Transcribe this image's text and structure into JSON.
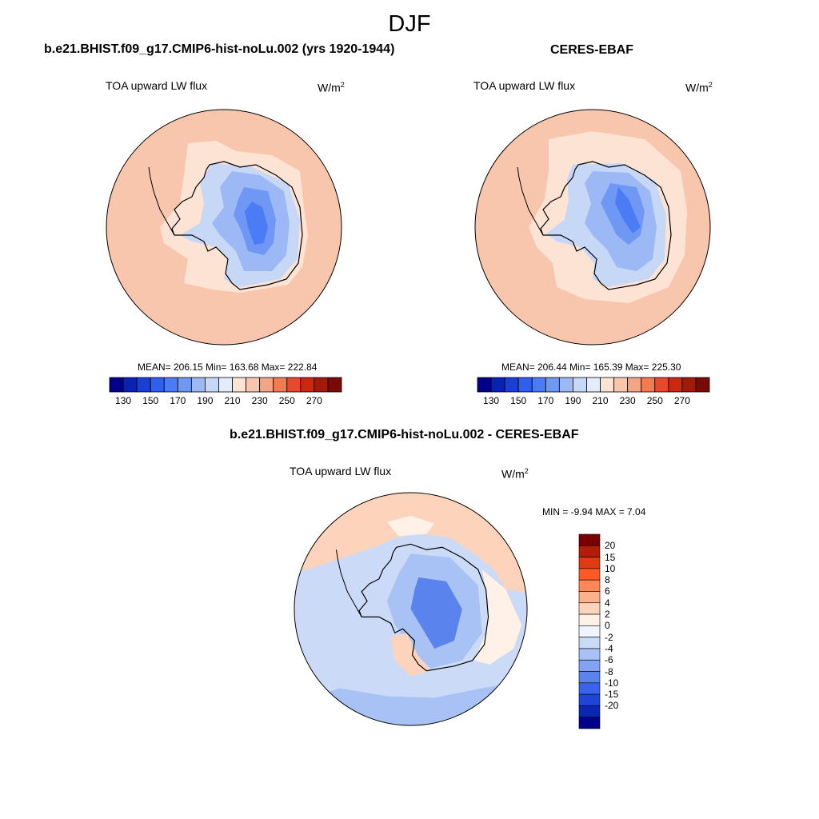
{
  "figure": {
    "season": "DJF"
  },
  "panels": {
    "model": {
      "title": "b.e21.BHIST.f09_g17.CMIP6-hist-noLu.002 (yrs 1920-1944)",
      "variable": "TOA upward LW flux",
      "units_base": "W/m",
      "units_exp": "2",
      "stats": "MEAN= 206.15  Min= 163.68  Max= 222.84"
    },
    "obs": {
      "title": "CERES-EBAF",
      "variable": "TOA upward LW flux",
      "units_base": "W/m",
      "units_exp": "2",
      "stats": "MEAN= 206.44  Min= 165.39  Max= 225.30"
    },
    "diff": {
      "title": "b.e21.BHIST.f09_g17.CMIP6-hist-noLu.002 - CERES-EBAF",
      "variable": "TOA upward LW flux",
      "units_base": "W/m",
      "units_exp": "2",
      "stats": "MIN =  -9.94 MAX =   7.04"
    }
  },
  "colorbar_abs": {
    "colors": [
      "#00008b",
      "#0a22b4",
      "#1a3fd6",
      "#2f5ff0",
      "#4b7bf5",
      "#6f98f5",
      "#9cb8f5",
      "#c7d8f7",
      "#e3ecfa",
      "#fde3d4",
      "#f8c6ad",
      "#f4a583",
      "#f27b52",
      "#e8492a",
      "#cc2810",
      "#a01b0a",
      "#7a0a05"
    ],
    "tick_labels": [
      "130",
      "150",
      "170",
      "190",
      "210",
      "230",
      "250",
      "270"
    ]
  },
  "colorbar_diff": {
    "colors": [
      "#7a0000",
      "#b01d08",
      "#e03a12",
      "#ff5a24",
      "#ff8858",
      "#fdb08a",
      "#fdd3bb",
      "#fff1e8",
      "#f0f4fd",
      "#cbdaf7",
      "#a9c2f5",
      "#82a2f2",
      "#5b83ee",
      "#3a62eb",
      "#1f45d6",
      "#0a26b4",
      "#00008b"
    ],
    "tick_labels": [
      "20",
      "15",
      "10",
      "8",
      "6",
      "4",
      "2",
      "0",
      "-2",
      "-4",
      "-6",
      "-8",
      "-10",
      "-15",
      "-20"
    ]
  },
  "map_colors": {
    "ocean_abs_outer": "#f8c6ad",
    "ocean_abs_inner": "#fde3d4",
    "ice_1": "#c7d8f7",
    "ice_2": "#9cb8f5",
    "ice_3": "#6f98f5",
    "ice_4": "#4b7bf5",
    "diff_warm": "#fdd3bb",
    "diff_warm_light": "#fff1e8",
    "diff_cool": "#cbdaf7",
    "diff_cool_2": "#a9c2f5",
    "diff_cool_3": "#5b83ee"
  }
}
